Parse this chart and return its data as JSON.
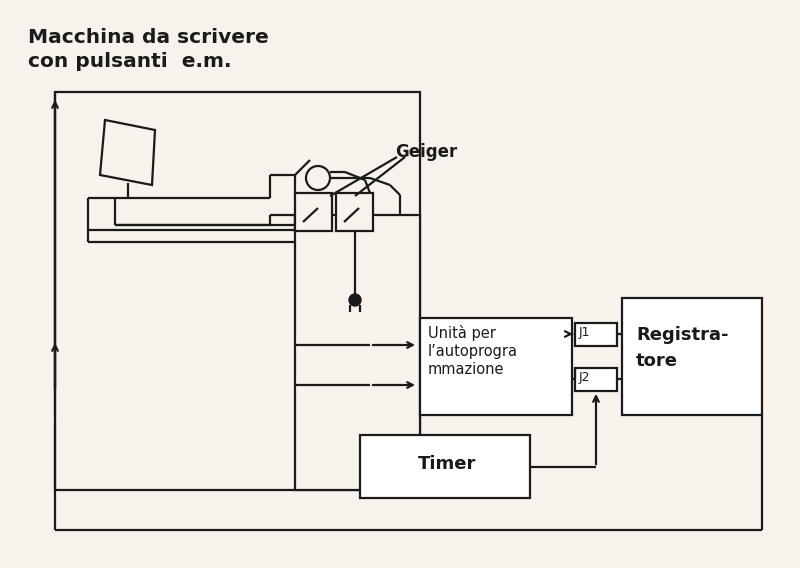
{
  "bg_color": "#f7f3ec",
  "line_color": "#1a1a1a",
  "title_line1": "Macchina da scrivere",
  "title_line2": "con pulsanti  e.m.",
  "geiger_label": "Geiger",
  "unit_line1": "Unità per",
  "unit_line2": "l’autoprogra",
  "unit_line3": "mmazione",
  "reg_line1": "Registra-",
  "reg_line2": "tore",
  "timer_label": "Timer",
  "j1_label": "J1",
  "j2_label": "J2"
}
